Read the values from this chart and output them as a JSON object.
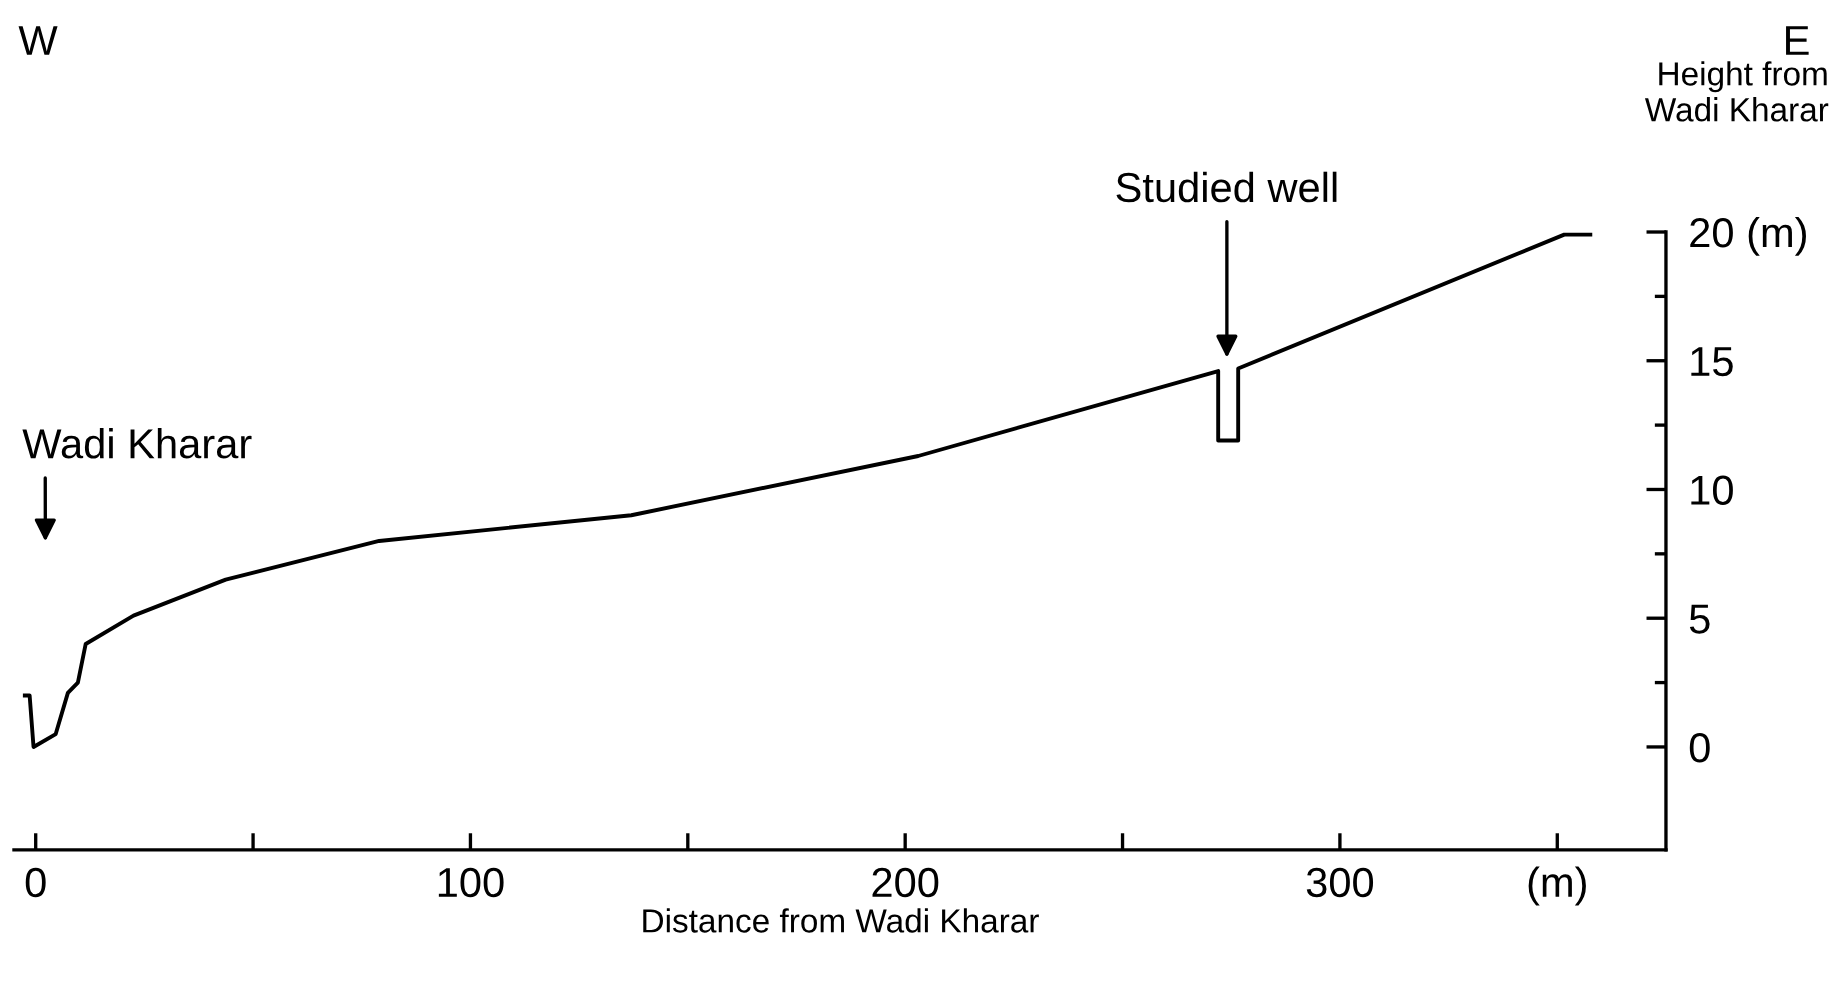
{
  "chart_data": {
    "type": "line",
    "xlabel": "Distance from Wadi Kharar",
    "ylabel": "Height from\nWadi Kharar",
    "series": [
      {
        "color": "#000000",
        "x": [
          -2.5,
          -1.4,
          -0.5,
          4.6,
          7.4,
          9.7,
          11.5,
          22.5,
          43.7,
          79,
          137,
          203,
          272,
          272,
          276.6,
          276.6,
          351.6,
          357.6
        ],
        "values": [
          2.0,
          2.0,
          0,
          0.5,
          2.1,
          2.5,
          4.0,
          5.1,
          6.5,
          8.0,
          9.0,
          11.3,
          14.6,
          11.9,
          11.9,
          14.7,
          19.9,
          19.9
        ]
      }
    ],
    "xlim": [
      -5,
      375
    ],
    "ylim": [
      -4,
      20
    ],
    "xticks": [
      0,
      {
        "value": 50,
        "label": null
      },
      100,
      {
        "value": 150,
        "label": null
      },
      200,
      {
        "value": 250,
        "label": null
      },
      300,
      {
        "value": 350,
        "label": "(m)"
      }
    ],
    "yticks": [
      0,
      {
        "value": 2.5,
        "label": null
      },
      5,
      {
        "value": 7.5,
        "label": null
      },
      10,
      {
        "value": 12.5,
        "label": null
      },
      15,
      {
        "value": 17.5,
        "label": null
      },
      {
        "value": 20,
        "label": "20 (m)"
      }
    ],
    "annotations": [
      "Wadi Kharar",
      {
        "text": "Studied well",
        "x": 274,
        "y": 14.9
      },
      "W",
      "E"
    ],
    "grid": false,
    "legend": false,
    "marker": "none",
    "line_style": "solid"
  }
}
